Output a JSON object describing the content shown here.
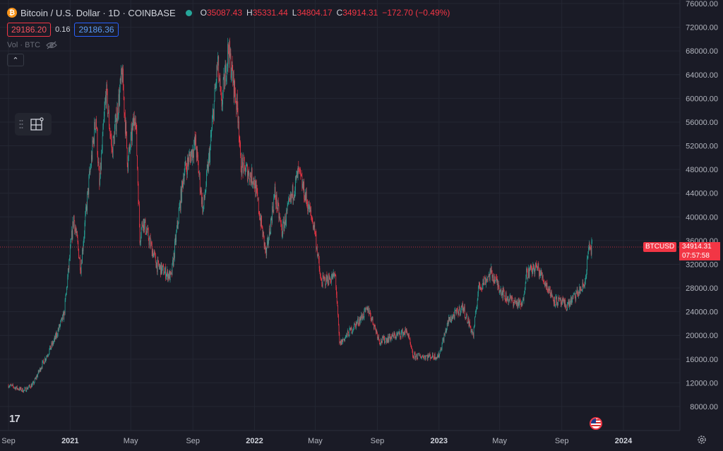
{
  "legend": {
    "symbol_icon": "bitcoin-icon",
    "title": "Bitcoin / U.S. Dollar · 1D · COINBASE",
    "open_key": "O",
    "open": "35087.43",
    "high_key": "H",
    "high": "35331.44",
    "low_key": "L",
    "low": "34804.17",
    "close_key": "C",
    "close": "34914.31",
    "change": "−172.70 (−0.49%)"
  },
  "trade": {
    "sell": "29186.20",
    "spread": "0.16",
    "buy": "29186.36"
  },
  "volume_label": "Vol · BTC",
  "symbol_tag": "BTCUSD",
  "last_price": "34914.31",
  "countdown": "07:57:58",
  "logo_text": "17",
  "colors": {
    "background": "#1a1b26",
    "up": "#26a69a",
    "down": "#f23645",
    "grid": "#242733",
    "text": "#b2b5be"
  },
  "chart_data": {
    "type": "candlestick",
    "y_axis_labels": [
      "76000.00",
      "72000.00",
      "68000.00",
      "64000.00",
      "60000.00",
      "56000.00",
      "52000.00",
      "48000.00",
      "44000.00",
      "40000.00",
      "36000.00",
      "32000.00",
      "28000.00",
      "24000.00",
      "20000.00",
      "16000.00",
      "12000.00",
      "8000.00"
    ],
    "x_axis_labels": [
      "Sep",
      "2021",
      "May",
      "Sep",
      "2022",
      "May",
      "Sep",
      "2023",
      "May",
      "Sep",
      "2024"
    ],
    "ylim": [
      5000,
      77000
    ],
    "grid": true,
    "last_price": 34914.31,
    "close_path": [
      [
        "2020-09-01",
        11600
      ],
      [
        "2020-10-01",
        10700
      ],
      [
        "2020-10-20",
        11800
      ],
      [
        "2020-11-05",
        14800
      ],
      [
        "2020-12-01",
        19200
      ],
      [
        "2020-12-20",
        23500
      ],
      [
        "2021-01-08",
        40000
      ],
      [
        "2021-01-22",
        31500
      ],
      [
        "2021-02-08",
        46500
      ],
      [
        "2021-02-21",
        57000
      ],
      [
        "2021-02-28",
        45000
      ],
      [
        "2021-03-13",
        61200
      ],
      [
        "2021-03-25",
        51000
      ],
      [
        "2021-04-14",
        64200
      ],
      [
        "2021-04-25",
        49000
      ],
      [
        "2021-05-10",
        58000
      ],
      [
        "2021-05-19",
        36500
      ],
      [
        "2021-05-25",
        39500
      ],
      [
        "2021-06-22",
        31800
      ],
      [
        "2021-07-20",
        29800
      ],
      [
        "2021-08-14",
        47500
      ],
      [
        "2021-09-06",
        52500
      ],
      [
        "2021-09-21",
        41000
      ],
      [
        "2021-10-05",
        51500
      ],
      [
        "2021-10-20",
        66000
      ],
      [
        "2021-10-27",
        58500
      ],
      [
        "2021-11-10",
        68500
      ],
      [
        "2021-11-30",
        57000
      ],
      [
        "2021-12-04",
        49000
      ],
      [
        "2021-12-31",
        46300
      ],
      [
        "2022-01-24",
        33500
      ],
      [
        "2022-02-10",
        44000
      ],
      [
        "2022-02-24",
        37500
      ],
      [
        "2022-03-29",
        47500
      ],
      [
        "2022-04-30",
        38000
      ],
      [
        "2022-05-12",
        29000
      ],
      [
        "2022-06-10",
        30000
      ],
      [
        "2022-06-18",
        18500
      ],
      [
        "2022-07-10",
        20800
      ],
      [
        "2022-08-14",
        24500
      ],
      [
        "2022-09-06",
        19000
      ],
      [
        "2022-10-30",
        20700
      ],
      [
        "2022-11-10",
        16500
      ],
      [
        "2022-12-31",
        16500
      ],
      [
        "2023-01-20",
        22500
      ],
      [
        "2023-02-17",
        24800
      ],
      [
        "2023-03-10",
        20000
      ],
      [
        "2023-03-20",
        28000
      ],
      [
        "2023-04-14",
        30500
      ],
      [
        "2023-05-12",
        26500
      ],
      [
        "2023-06-15",
        25000
      ],
      [
        "2023-06-22",
        30500
      ],
      [
        "2023-07-14",
        31500
      ],
      [
        "2023-08-17",
        26000
      ],
      [
        "2023-09-11",
        25000
      ],
      [
        "2023-10-16",
        28500
      ],
      [
        "2023-10-24",
        34500
      ],
      [
        "2023-10-31",
        34914
      ]
    ]
  }
}
